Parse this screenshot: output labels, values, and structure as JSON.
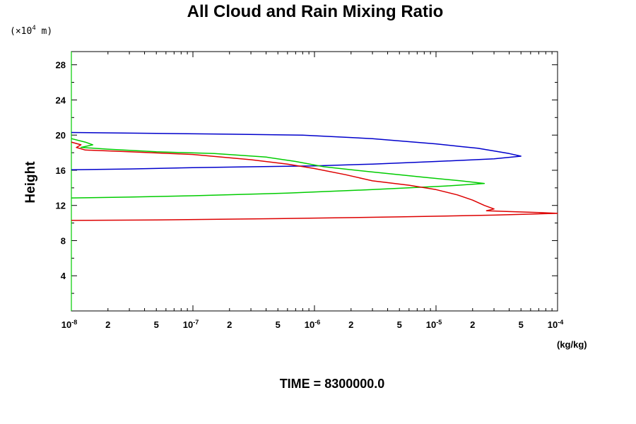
{
  "chart_data": {
    "type": "line",
    "title": "All Cloud and Rain Mixing Ratio",
    "ylabel": "Height",
    "y_unit_mantissa": "(×10",
    "y_unit_exponent": "4",
    "y_unit_suffix": " m)",
    "xlabel_unit": "(kg/kg)",
    "footer": "TIME = 8300000.0",
    "x_scale": "log",
    "xlim": [
      1e-08,
      0.0001
    ],
    "ylim": [
      0,
      29.5
    ],
    "y_major_ticks": [
      4,
      8,
      12,
      16,
      20,
      24,
      28
    ],
    "y_minor_step": 2,
    "x_decade_labels": [
      {
        "value": 1e-08,
        "base": "10",
        "exp": "-8"
      },
      {
        "value": 1e-07,
        "base": "10",
        "exp": "-7"
      },
      {
        "value": 1e-06,
        "base": "10",
        "exp": "-6"
      },
      {
        "value": 1e-05,
        "base": "10",
        "exp": "-5"
      },
      {
        "value": 0.0001,
        "base": "10",
        "exp": "-4"
      }
    ],
    "x_minor_labels": [
      {
        "value": 2e-08,
        "label": "2"
      },
      {
        "value": 5e-08,
        "label": "5"
      },
      {
        "value": 2e-07,
        "label": "2"
      },
      {
        "value": 5e-07,
        "label": "5"
      },
      {
        "value": 2e-06,
        "label": "2"
      },
      {
        "value": 5e-06,
        "label": "5"
      },
      {
        "value": 2e-05,
        "label": "2"
      },
      {
        "value": 5e-05,
        "label": "5"
      }
    ],
    "series": [
      {
        "color": "#0000cc",
        "points": [
          [
            1e-08,
            20.3
          ],
          [
            5e-08,
            20.2
          ],
          [
            2e-07,
            20.1
          ],
          [
            8e-07,
            20.0
          ],
          [
            3e-06,
            19.6
          ],
          [
            1e-05,
            19.0
          ],
          [
            1.6e-05,
            18.7
          ],
          [
            2.2e-05,
            18.5
          ],
          [
            3e-05,
            18.2
          ],
          [
            4e-05,
            17.9
          ],
          [
            5e-05,
            17.6
          ],
          [
            3e-05,
            17.3
          ],
          [
            1e-05,
            17.0
          ],
          [
            3e-06,
            16.7
          ],
          [
            1e-06,
            16.5
          ],
          [
            3e-07,
            16.4
          ],
          [
            1e-07,
            16.3
          ],
          [
            3e-08,
            16.15
          ],
          [
            1e-08,
            16.05
          ]
        ]
      },
      {
        "color": "#00cc00",
        "points": [
          [
            1e-08,
            19.6
          ],
          [
            1.3e-08,
            19.2
          ],
          [
            1.5e-08,
            18.9
          ],
          [
            1.2e-08,
            18.6
          ],
          [
            2e-08,
            18.4
          ],
          [
            5e-08,
            18.1
          ],
          [
            1.5e-07,
            17.9
          ],
          [
            4e-07,
            17.5
          ],
          [
            7e-07,
            17.0
          ],
          [
            1.2e-06,
            16.4
          ],
          [
            3e-06,
            15.8
          ],
          [
            8e-06,
            15.2
          ],
          [
            1.6e-05,
            14.8
          ],
          [
            2.5e-05,
            14.5
          ],
          [
            1.2e-05,
            14.2
          ],
          [
            3e-06,
            13.8
          ],
          [
            6e-07,
            13.4
          ],
          [
            1e-07,
            13.1
          ],
          [
            3e-08,
            12.95
          ],
          [
            1e-08,
            12.85
          ]
        ]
      },
      {
        "color": "#dd0000",
        "points": [
          [
            1e-08,
            19.2
          ],
          [
            1.2e-08,
            18.9
          ],
          [
            1.1e-08,
            18.6
          ],
          [
            1.3e-08,
            18.3
          ],
          [
            3e-08,
            18.1
          ],
          [
            1e-07,
            17.8
          ],
          [
            3e-07,
            17.2
          ],
          [
            6e-07,
            16.7
          ],
          [
            1e-06,
            16.2
          ],
          [
            1.8e-06,
            15.5
          ],
          [
            3e-06,
            14.8
          ],
          [
            6e-06,
            14.3
          ],
          [
            1e-05,
            13.8
          ],
          [
            1.5e-05,
            13.2
          ],
          [
            2e-05,
            12.6
          ],
          [
            2.5e-05,
            12.0
          ],
          [
            3e-05,
            11.6
          ],
          [
            2.6e-05,
            11.4
          ],
          [
            4e-05,
            11.3
          ],
          [
            7e-05,
            11.2
          ],
          [
            0.0001,
            11.1
          ],
          [
            3e-05,
            10.9
          ],
          [
            5e-06,
            10.7
          ],
          [
            5e-07,
            10.5
          ],
          [
            5e-08,
            10.35
          ],
          [
            1e-08,
            10.3
          ]
        ]
      }
    ]
  }
}
